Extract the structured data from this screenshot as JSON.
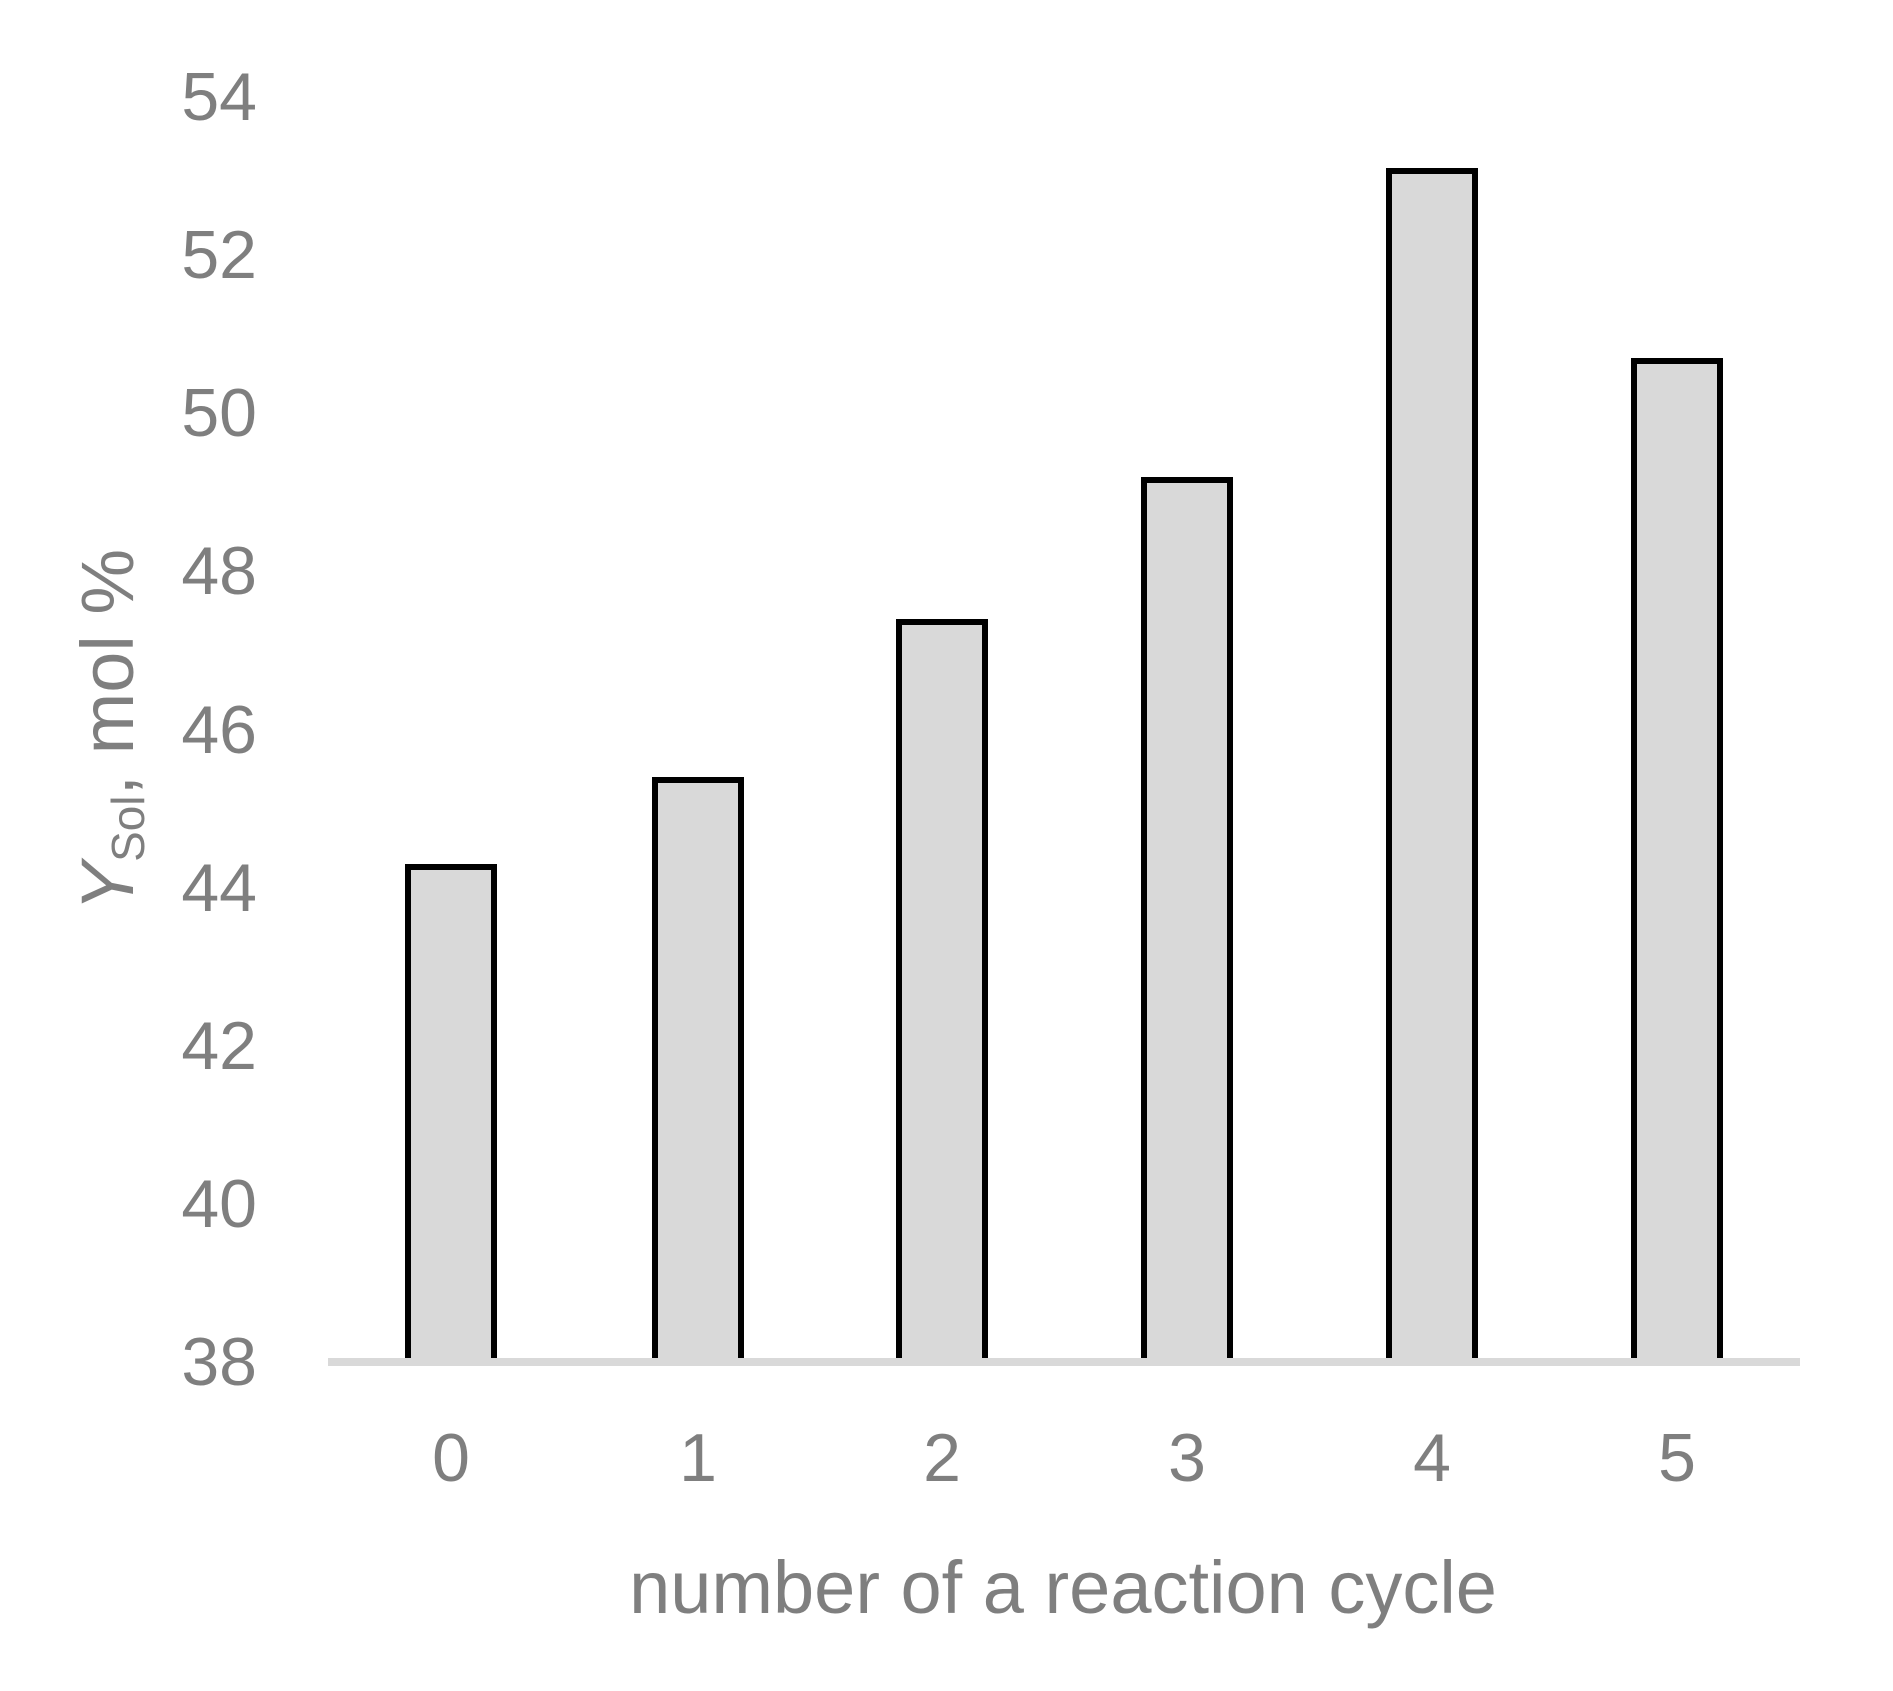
{
  "chart_data": {
    "type": "bar",
    "categories": [
      "0",
      "1",
      "2",
      "3",
      "4",
      "5"
    ],
    "values": [
      44.3,
      45.4,
      47.4,
      49.2,
      53.1,
      50.7
    ],
    "title": "",
    "xlabel": "number of a reaction cycle",
    "ylabel": {
      "symbol": "Y",
      "subscript": "Sol",
      "suffix": ", mol %"
    },
    "ylim": [
      38,
      54
    ],
    "yticks": [
      38,
      40,
      42,
      44,
      46,
      48,
      50,
      52,
      54
    ],
    "grid": false,
    "legend": false,
    "bar_fill_color": "#d9d9d9",
    "bar_border_color": "#000000",
    "axis_line_color": "#d9d9d9",
    "text_color": "#7f7f7f"
  }
}
